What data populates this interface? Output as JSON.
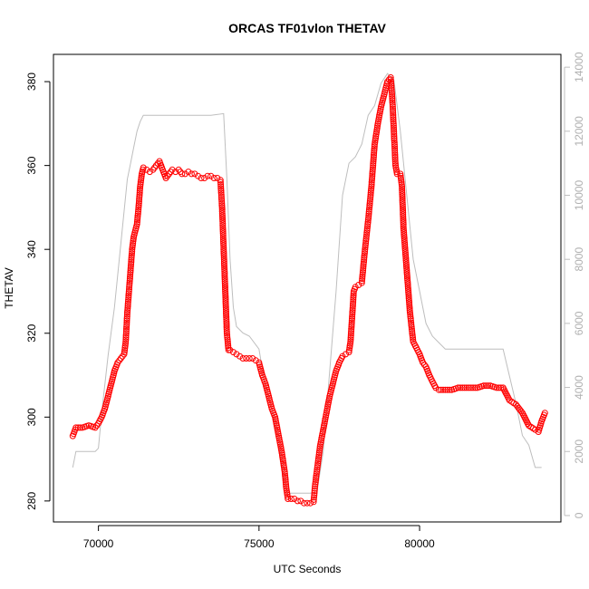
{
  "chart_data": {
    "type": "scatter",
    "title": "ORCAS TF01vlon THETAV",
    "xlabel": "UTC Seconds",
    "ylabel": "THETAV",
    "xlim": [
      68600,
      84400
    ],
    "ylim": [
      275,
      386.5
    ],
    "x_ticks": [
      70000,
      75000,
      80000
    ],
    "y_ticks": [
      280,
      300,
      320,
      340,
      360,
      380
    ],
    "y2lim": [
      -200,
      14400
    ],
    "y2_ticks": [
      0,
      2000,
      4000,
      6000,
      8000,
      10000,
      12000,
      14000
    ],
    "grid": false,
    "colors": {
      "primary": "#ff0000",
      "secondary": "#bebebe"
    },
    "series": [
      {
        "axis": "left",
        "style": "open-circle",
        "color": "#ff0000",
        "points": [
          [
            69200,
            295.5
          ],
          [
            69300,
            297.5
          ],
          [
            69500,
            297.5
          ],
          [
            69700,
            298
          ],
          [
            69900,
            297.5
          ],
          [
            70000,
            298.5
          ],
          [
            70100,
            300
          ],
          [
            70200,
            302
          ],
          [
            70300,
            305
          ],
          [
            70400,
            308
          ],
          [
            70500,
            311
          ],
          [
            70600,
            313
          ],
          [
            70700,
            314
          ],
          [
            70800,
            315
          ],
          [
            70850,
            318
          ],
          [
            70900,
            325
          ],
          [
            70950,
            330
          ],
          [
            71000,
            335
          ],
          [
            71050,
            340
          ],
          [
            71100,
            343
          ],
          [
            71200,
            346
          ],
          [
            71250,
            350
          ],
          [
            71300,
            355
          ],
          [
            71350,
            358
          ],
          [
            71400,
            359.5
          ],
          [
            71500,
            359
          ],
          [
            71600,
            358.5
          ],
          [
            71700,
            359
          ],
          [
            71800,
            360
          ],
          [
            71900,
            361
          ],
          [
            72000,
            359
          ],
          [
            72100,
            357
          ],
          [
            72200,
            358
          ],
          [
            72300,
            359
          ],
          [
            72400,
            358.5
          ],
          [
            72500,
            359
          ],
          [
            72600,
            358
          ],
          [
            72700,
            358
          ],
          [
            72800,
            358.5
          ],
          [
            72900,
            358
          ],
          [
            73000,
            358
          ],
          [
            73100,
            357.5
          ],
          [
            73200,
            357
          ],
          [
            73300,
            357
          ],
          [
            73400,
            357.5
          ],
          [
            73500,
            357.5
          ],
          [
            73600,
            357
          ],
          [
            73700,
            357
          ],
          [
            73800,
            356.5
          ],
          [
            73850,
            350
          ],
          [
            73900,
            340
          ],
          [
            73950,
            330
          ],
          [
            74000,
            320
          ],
          [
            74050,
            316
          ],
          [
            74100,
            316
          ],
          [
            74200,
            315.5
          ],
          [
            74300,
            315
          ],
          [
            74400,
            314.5
          ],
          [
            74500,
            314
          ],
          [
            74600,
            314
          ],
          [
            74700,
            314
          ],
          [
            74800,
            314
          ],
          [
            74900,
            313.5
          ],
          [
            75000,
            313
          ],
          [
            75100,
            310
          ],
          [
            75200,
            308
          ],
          [
            75300,
            305
          ],
          [
            75400,
            302
          ],
          [
            75500,
            300
          ],
          [
            75600,
            296
          ],
          [
            75700,
            292
          ],
          [
            75800,
            287
          ],
          [
            75850,
            283
          ],
          [
            75900,
            280.5
          ],
          [
            76000,
            280.5
          ],
          [
            76100,
            280.5
          ],
          [
            76200,
            280
          ],
          [
            76300,
            280
          ],
          [
            76400,
            279.5
          ],
          [
            76500,
            279.5
          ],
          [
            76600,
            279.5
          ],
          [
            76700,
            279.8
          ],
          [
            76750,
            284
          ],
          [
            76800,
            287
          ],
          [
            76850,
            290
          ],
          [
            76900,
            293
          ],
          [
            77000,
            297
          ],
          [
            77100,
            301
          ],
          [
            77200,
            305
          ],
          [
            77300,
            308
          ],
          [
            77400,
            311
          ],
          [
            77500,
            313
          ],
          [
            77600,
            314.5
          ],
          [
            77700,
            315
          ],
          [
            77800,
            315.5
          ],
          [
            77850,
            318
          ],
          [
            77900,
            324
          ],
          [
            77950,
            330
          ],
          [
            78000,
            331
          ],
          [
            78100,
            331.5
          ],
          [
            78200,
            332
          ],
          [
            78300,
            340
          ],
          [
            78400,
            347
          ],
          [
            78500,
            355
          ],
          [
            78550,
            360
          ],
          [
            78600,
            365
          ],
          [
            78700,
            370
          ],
          [
            78800,
            374
          ],
          [
            78900,
            377
          ],
          [
            79000,
            380
          ],
          [
            79100,
            381
          ],
          [
            79150,
            376
          ],
          [
            79200,
            368
          ],
          [
            79250,
            360
          ],
          [
            79300,
            358
          ],
          [
            79400,
            358
          ],
          [
            79450,
            355
          ],
          [
            79500,
            345
          ],
          [
            79600,
            335
          ],
          [
            79700,
            325
          ],
          [
            79800,
            318
          ],
          [
            79900,
            316.5
          ],
          [
            80000,
            315
          ],
          [
            80100,
            313
          ],
          [
            80200,
            312
          ],
          [
            80300,
            310
          ],
          [
            80400,
            308.5
          ],
          [
            80500,
            307
          ],
          [
            80600,
            306.5
          ],
          [
            80800,
            306.5
          ],
          [
            81000,
            306.5
          ],
          [
            81200,
            307
          ],
          [
            81400,
            307
          ],
          [
            81600,
            307
          ],
          [
            81800,
            307
          ],
          [
            82000,
            307.5
          ],
          [
            82200,
            307.5
          ],
          [
            82400,
            307
          ],
          [
            82600,
            307
          ],
          [
            82800,
            304
          ],
          [
            83000,
            303
          ],
          [
            83200,
            301
          ],
          [
            83400,
            298
          ],
          [
            83600,
            297
          ],
          [
            83700,
            296.5
          ],
          [
            83800,
            299
          ],
          [
            83900,
            301
          ]
        ]
      },
      {
        "axis": "right",
        "style": "line",
        "color": "#bebebe",
        "points": [
          [
            69200,
            1500
          ],
          [
            69300,
            2000
          ],
          [
            69800,
            2000
          ],
          [
            69900,
            2000
          ],
          [
            70000,
            2100
          ],
          [
            70100,
            3200
          ],
          [
            70300,
            5000
          ],
          [
            70500,
            6500
          ],
          [
            70700,
            8500
          ],
          [
            70900,
            10500
          ],
          [
            71000,
            11000
          ],
          [
            71100,
            11500
          ],
          [
            71200,
            12000
          ],
          [
            71300,
            12300
          ],
          [
            71400,
            12500
          ],
          [
            72000,
            12500
          ],
          [
            72500,
            12500
          ],
          [
            73000,
            12500
          ],
          [
            73500,
            12500
          ],
          [
            73900,
            12550
          ],
          [
            74000,
            10500
          ],
          [
            74100,
            8000
          ],
          [
            74200,
            6500
          ],
          [
            74300,
            5900
          ],
          [
            74500,
            5700
          ],
          [
            74700,
            5600
          ],
          [
            75000,
            5200
          ],
          [
            75200,
            4000
          ],
          [
            75400,
            3300
          ],
          [
            75600,
            2400
          ],
          [
            75800,
            1000
          ],
          [
            75900,
            650
          ],
          [
            76000,
            700
          ],
          [
            76500,
            700
          ],
          [
            76800,
            700
          ],
          [
            77000,
            2000
          ],
          [
            77200,
            4500
          ],
          [
            77400,
            7000
          ],
          [
            77600,
            10000
          ],
          [
            77800,
            11000
          ],
          [
            78000,
            11200
          ],
          [
            78200,
            11600
          ],
          [
            78400,
            12500
          ],
          [
            78600,
            12800
          ],
          [
            78800,
            13500
          ],
          [
            79000,
            13800
          ],
          [
            79200,
            13600
          ],
          [
            79400,
            12000
          ],
          [
            79600,
            10000
          ],
          [
            79800,
            8000
          ],
          [
            80000,
            7000
          ],
          [
            80200,
            6000
          ],
          [
            80400,
            5600
          ],
          [
            80600,
            5400
          ],
          [
            80800,
            5200
          ],
          [
            81000,
            5200
          ],
          [
            81200,
            5200
          ],
          [
            82000,
            5200
          ],
          [
            82600,
            5200
          ],
          [
            83000,
            3500
          ],
          [
            83200,
            2500
          ],
          [
            83400,
            2200
          ],
          [
            83600,
            1500
          ],
          [
            83800,
            1500
          ]
        ]
      }
    ]
  }
}
